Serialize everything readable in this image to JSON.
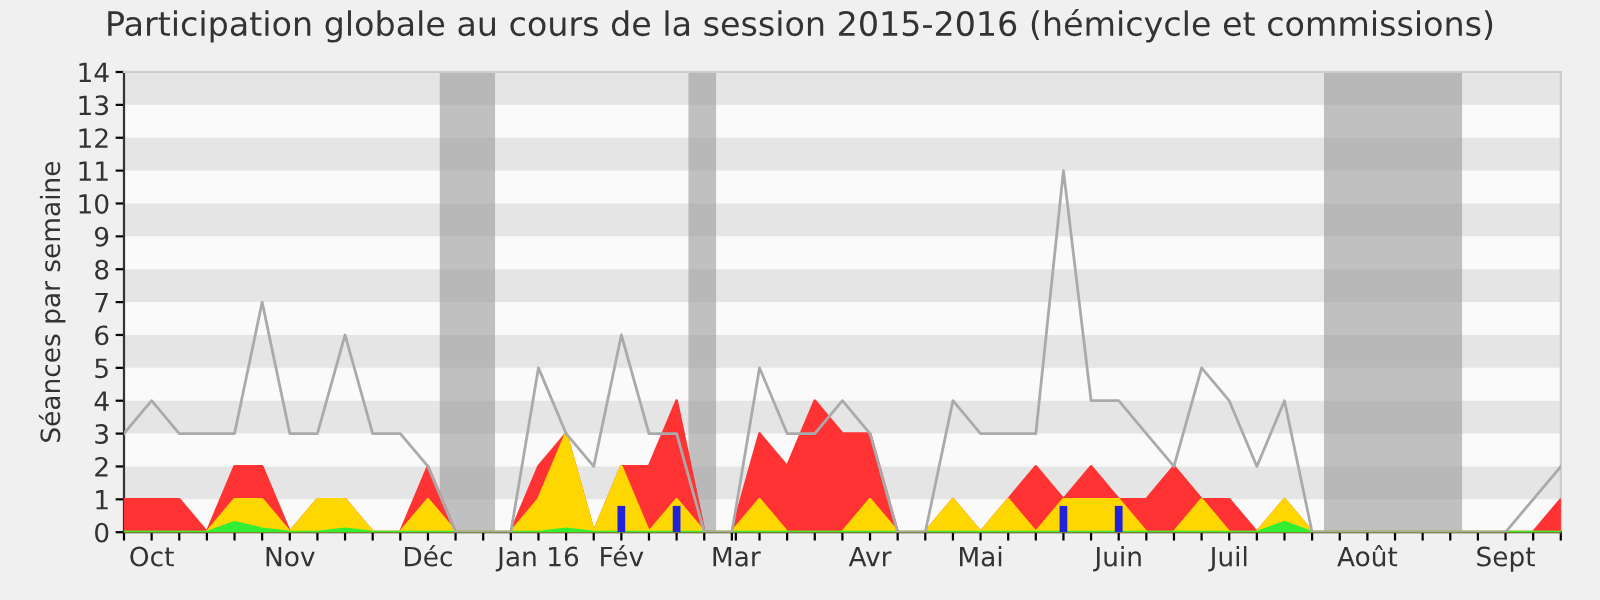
{
  "chart_data": {
    "type": "area",
    "title": "Participation globale au cours de la session 2015-2016 (hémicycle et commissions)",
    "ylabel": "Séances par semaine",
    "x": [
      "2015-09-28",
      "2015-10-05",
      "2015-10-12",
      "2015-10-19",
      "2015-10-26",
      "2015-11-02",
      "2015-11-09",
      "2015-11-16",
      "2015-11-23",
      "2015-11-30",
      "2015-12-07",
      "2015-12-14",
      "2015-12-21",
      "2015-12-28",
      "2016-01-04",
      "2016-01-11",
      "2016-01-18",
      "2016-01-25",
      "2016-02-01",
      "2016-02-08",
      "2016-02-15",
      "2016-02-22",
      "2016-02-29",
      "2016-03-07",
      "2016-03-14",
      "2016-03-21",
      "2016-03-28",
      "2016-04-04",
      "2016-04-11",
      "2016-04-18",
      "2016-04-25",
      "2016-05-02",
      "2016-05-09",
      "2016-05-16",
      "2016-05-23",
      "2016-05-30",
      "2016-06-06",
      "2016-06-13",
      "2016-06-20",
      "2016-06-27",
      "2016-07-04",
      "2016-07-11",
      "2016-07-18",
      "2016-07-25",
      "2016-08-01",
      "2016-08-08",
      "2016-08-15",
      "2016-08-22",
      "2016-08-29",
      "2016-09-05",
      "2016-09-12",
      "2016-09-19",
      "2016-09-26"
    ],
    "series": [
      {
        "type": "line",
        "color": "#aaaaaa",
        "values": [
          3,
          4,
          3,
          3,
          3,
          7,
          3,
          3,
          6,
          3,
          3,
          2,
          0,
          0,
          0,
          5,
          3,
          2,
          6,
          3,
          3,
          0,
          0,
          5,
          3,
          3,
          4,
          3,
          0,
          0,
          4,
          3,
          3,
          3,
          11,
          4,
          4,
          3,
          2,
          5,
          4,
          2,
          4,
          0,
          0,
          0,
          0,
          0,
          0,
          0,
          0,
          1,
          2
        ]
      },
      {
        "color": "#ff3333",
        "values": [
          1,
          1,
          1,
          0,
          2,
          2,
          0,
          1,
          1,
          0,
          0,
          2,
          0,
          0,
          0,
          2,
          3,
          0,
          2,
          2,
          4,
          0,
          0,
          3,
          2,
          4,
          3,
          3,
          0,
          0,
          1,
          0,
          1,
          2,
          1,
          2,
          1,
          1,
          2,
          1,
          1,
          0,
          1,
          0,
          0,
          0,
          0,
          0,
          0,
          0,
          0,
          0,
          1
        ]
      },
      {
        "color": "#ffd700",
        "values": [
          0,
          0,
          0,
          0,
          1,
          1,
          0,
          1,
          1,
          0,
          0,
          1,
          0,
          0,
          0,
          1,
          3,
          0,
          2,
          0,
          1,
          0,
          0,
          1,
          0,
          0,
          0,
          1,
          0,
          0,
          1,
          0,
          1,
          0,
          1,
          1,
          1,
          0,
          0,
          1,
          0,
          0,
          1,
          0,
          0,
          0,
          0,
          0,
          0,
          0,
          0,
          0,
          0
        ]
      },
      {
        "color": "#33ee33",
        "values": [
          0,
          0,
          0,
          0,
          0.3,
          0.1,
          0,
          0,
          0.1,
          0,
          0,
          0,
          0,
          0,
          0,
          0,
          0.1,
          0,
          0,
          0,
          0,
          0,
          0,
          0,
          0,
          0,
          0,
          0,
          0,
          0,
          0,
          0,
          0,
          0,
          0,
          0,
          0,
          0,
          0,
          0,
          0,
          0,
          0.3,
          0,
          0,
          0,
          0,
          0,
          0,
          0,
          0,
          0,
          0
        ]
      },
      {
        "type": "bar",
        "color": "#2222dd",
        "values": [
          null,
          null,
          null,
          null,
          null,
          null,
          null,
          null,
          null,
          null,
          null,
          null,
          null,
          null,
          null,
          null,
          null,
          null,
          0.8,
          null,
          0.8,
          null,
          null,
          null,
          null,
          null,
          null,
          null,
          null,
          null,
          null,
          null,
          null,
          null,
          0.8,
          null,
          0.8,
          null,
          null,
          null,
          null,
          null,
          null,
          null,
          null,
          null,
          null,
          null,
          null,
          null,
          null,
          null,
          null
        ]
      }
    ],
    "bands": [
      {
        "axis": "x",
        "from": "2015-12-17",
        "to": "2015-12-31",
        "color": "#999999"
      },
      {
        "axis": "x",
        "from": "2016-02-18",
        "to": "2016-02-25",
        "color": "#999999"
      },
      {
        "axis": "x",
        "from": "2016-07-28",
        "to": "2016-09-01",
        "color": "#999999"
      },
      {
        "axis": "y",
        "from": 1,
        "to": 2,
        "color": "#e5e5e5"
      },
      {
        "axis": "y",
        "from": 3,
        "to": 4,
        "color": "#e5e5e5"
      },
      {
        "axis": "y",
        "from": 5,
        "to": 6,
        "color": "#e5e5e5"
      },
      {
        "axis": "y",
        "from": 7,
        "to": 8,
        "color": "#e5e5e5"
      },
      {
        "axis": "y",
        "from": 9,
        "to": 10,
        "color": "#e5e5e5"
      },
      {
        "axis": "y",
        "from": 11,
        "to": 12,
        "color": "#e5e5e5"
      },
      {
        "axis": "y",
        "from": 13,
        "to": 14,
        "color": "#e5e5e5"
      }
    ],
    "xlim": [
      "2015-09-28",
      "2016-09-26"
    ],
    "xticks": [
      {
        "value": "2015-09-28",
        "label": null
      },
      {
        "value": "2015-10-05",
        "label": "Oct"
      },
      {
        "value": "2015-10-12",
        "label": null
      },
      {
        "value": "2015-10-19",
        "label": null
      },
      {
        "value": "2015-10-26",
        "label": null
      },
      {
        "value": "2015-11-02",
        "label": null
      },
      {
        "value": "2015-11-09",
        "label": "Nov"
      },
      {
        "value": "2015-11-16",
        "label": null
      },
      {
        "value": "2015-11-23",
        "label": null
      },
      {
        "value": "2015-11-30",
        "label": null
      },
      {
        "value": "2015-12-07",
        "label": null
      },
      {
        "value": "2015-12-14",
        "label": "Déc"
      },
      {
        "value": "2015-12-21",
        "label": null
      },
      {
        "value": "2015-12-28",
        "label": null
      },
      {
        "value": "2016-01-04",
        "label": null
      },
      {
        "value": "2016-01-11",
        "label": "Jan 16"
      },
      {
        "value": "2016-01-18",
        "label": null
      },
      {
        "value": "2016-01-25",
        "label": null
      },
      {
        "value": "2016-02-01",
        "label": "Fév"
      },
      {
        "value": "2016-02-08",
        "label": null
      },
      {
        "value": "2016-02-15",
        "label": null
      },
      {
        "value": "2016-02-22",
        "label": null
      },
      {
        "value": "2016-02-29",
        "label": null
      },
      {
        "value": "2016-03-01",
        "label": "Mar"
      },
      {
        "value": "2016-03-07",
        "label": null
      },
      {
        "value": "2016-03-14",
        "label": null
      },
      {
        "value": "2016-03-21",
        "label": null
      },
      {
        "value": "2016-03-28",
        "label": null
      },
      {
        "value": "2016-04-04",
        "label": "Avr"
      },
      {
        "value": "2016-04-11",
        "label": null
      },
      {
        "value": "2016-04-18",
        "label": null
      },
      {
        "value": "2016-04-25",
        "label": null
      },
      {
        "value": "2016-05-02",
        "label": "Mai"
      },
      {
        "value": "2016-05-09",
        "label": null
      },
      {
        "value": "2016-05-16",
        "label": null
      },
      {
        "value": "2016-05-23",
        "label": null
      },
      {
        "value": "2016-05-30",
        "label": null
      },
      {
        "value": "2016-06-06",
        "label": "Juin"
      },
      {
        "value": "2016-06-13",
        "label": null
      },
      {
        "value": "2016-06-20",
        "label": null
      },
      {
        "value": "2016-06-27",
        "label": null
      },
      {
        "value": "2016-07-04",
        "label": "Juil"
      },
      {
        "value": "2016-07-11",
        "label": null
      },
      {
        "value": "2016-07-18",
        "label": null
      },
      {
        "value": "2016-07-25",
        "label": null
      },
      {
        "value": "2016-08-01",
        "label": null
      },
      {
        "value": "2016-08-08",
        "label": "Août"
      },
      {
        "value": "2016-08-15",
        "label": null
      },
      {
        "value": "2016-08-22",
        "label": null
      },
      {
        "value": "2016-08-29",
        "label": null
      },
      {
        "value": "2016-09-05",
        "label": null
      },
      {
        "value": "2016-09-12",
        "label": "Sept"
      },
      {
        "value": "2016-09-19",
        "label": null
      },
      {
        "value": "2016-09-26",
        "label": null
      }
    ],
    "ylim": [
      0,
      14
    ],
    "yticks": [
      0,
      1,
      2,
      3,
      4,
      5,
      6,
      7,
      8,
      9,
      10,
      11,
      12,
      13,
      14
    ]
  }
}
